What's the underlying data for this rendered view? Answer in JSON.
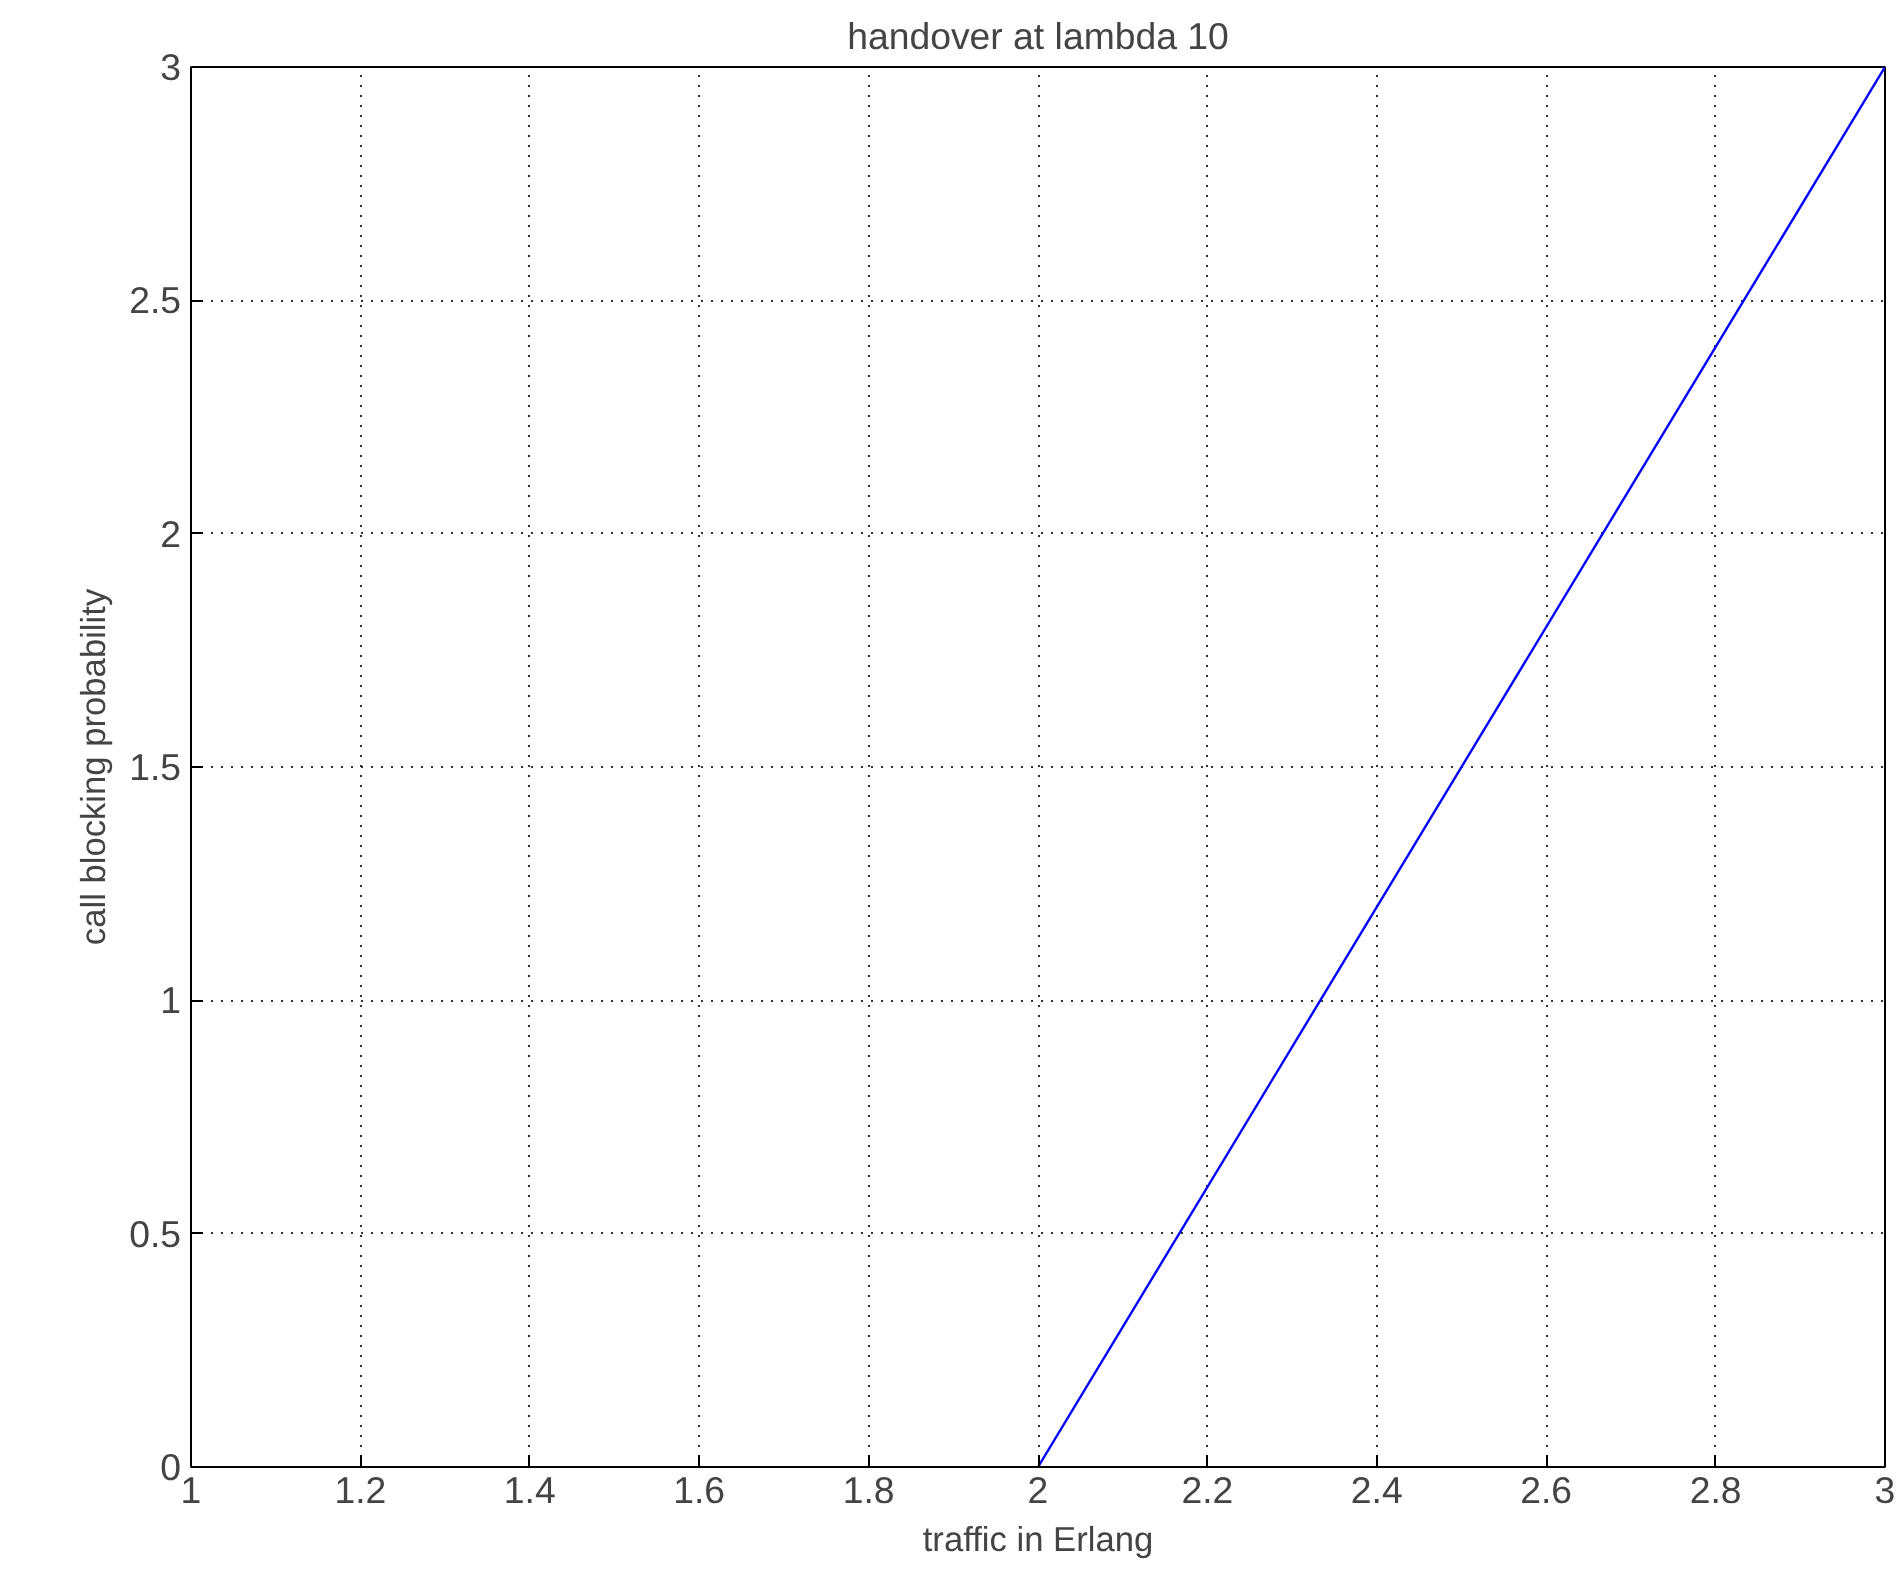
{
  "chart_data": {
    "type": "line",
    "title": "handover at lambda 10",
    "xlabel": "traffic in Erlang",
    "ylabel": "call blocking probability",
    "x": [
      2,
      3
    ],
    "series": [
      {
        "color": "#0000ff",
        "values": [
          0,
          3
        ]
      }
    ],
    "xlim": [
      1,
      3
    ],
    "ylim": [
      0,
      3
    ],
    "xticks": [
      1,
      1.2,
      1.4,
      1.6,
      1.8,
      2,
      2.2,
      2.4,
      2.6,
      2.8,
      3
    ],
    "yticks": [
      0,
      0.5,
      1,
      1.5,
      2,
      2.5,
      3
    ],
    "grid": true,
    "line_style": "solid",
    "marker": "none"
  }
}
